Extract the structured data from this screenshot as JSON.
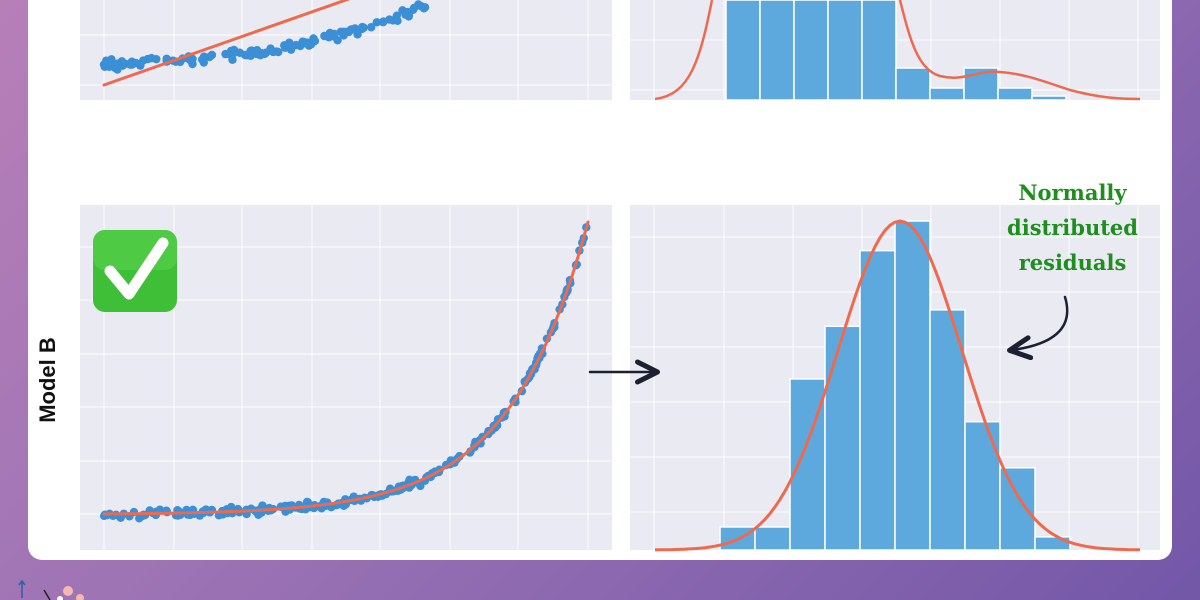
{
  "panel_label": "Model B",
  "annotation": {
    "lines": [
      "Normally",
      "distributed",
      "residuals"
    ],
    "color": "#1e8f1e"
  },
  "icons": {
    "badge": "check-mark-button-icon",
    "transition": "right-arrow-icon",
    "pointer": "curved-arrow-icon"
  },
  "colors": {
    "points": "#3a8fd6",
    "fit_line": "#ee6a4f",
    "bars": "#5da9de",
    "plot_background": "#e9eaf2"
  },
  "chart_data": [
    {
      "type": "scatter",
      "panel": "Model A fit (partially visible)",
      "title": "",
      "xlabel": "",
      "ylabel": "",
      "xlim": [
        0,
        1
      ],
      "ylim": [
        -0.25,
        1
      ],
      "grid": true,
      "scatter_trend": {
        "start_y": 0.05,
        "end_y": 0.95,
        "note": "curved upward trend"
      },
      "series": [
        {
          "kind": "points",
          "x_range": [
            0,
            0.52
          ],
          "y_at_start": 0.05,
          "y_at_end": 1.0,
          "count": 150
        },
        {
          "kind": "linear-fit",
          "x": [
            0,
            0.52
          ],
          "y": [
            -0.2,
            1.05
          ]
        }
      ]
    },
    {
      "type": "bar",
      "panel": "Model A residuals (partially visible)",
      "title": "",
      "xlabel": "",
      "ylabel": "",
      "grid": true,
      "bin_edges": [
        -3.0,
        -2.5,
        -2.0,
        -1.5,
        -1.0,
        -0.5,
        0.0,
        0.5,
        1.0,
        1.5
      ],
      "values": [
        10,
        10,
        10,
        10,
        1.7,
        0.6,
        1.8,
        0.6,
        0.2
      ],
      "density_curve": [
        [
          -4.0,
          0.0
        ],
        [
          -3.5,
          0.4
        ],
        [
          -3.1,
          10
        ],
        [
          -1.0,
          10
        ],
        [
          -0.6,
          2.0
        ],
        [
          0.0,
          1.3
        ],
        [
          0.6,
          1.6
        ],
        [
          1.2,
          0.6
        ],
        [
          2.0,
          0.05
        ]
      ]
    },
    {
      "type": "scatter",
      "panel": "Model B fit",
      "title": "",
      "xlabel": "",
      "ylabel": "",
      "xlim": [
        0,
        1
      ],
      "ylim": [
        0,
        1
      ],
      "grid": true,
      "series": [
        {
          "kind": "points",
          "x_range": [
            0,
            1
          ],
          "model": "exponential",
          "count": 250
        },
        {
          "kind": "exponential-fit",
          "x": [
            0,
            0.2,
            0.4,
            0.5,
            0.6,
            0.7,
            0.8,
            0.9,
            1.0
          ],
          "y": [
            0.0,
            0.005,
            0.02,
            0.04,
            0.07,
            0.13,
            0.26,
            0.5,
            0.94
          ]
        }
      ]
    },
    {
      "type": "bar",
      "panel": "Model B residuals",
      "title": "",
      "xlabel": "",
      "ylabel": "",
      "grid": true,
      "bin_edges": [
        -3.0,
        -2.5,
        -2.0,
        -1.5,
        -1.0,
        -0.5,
        0.0,
        0.5,
        1.0,
        1.5,
        2.0
      ],
      "values": [
        0.07,
        0.07,
        0.52,
        0.68,
        0.91,
        1.0,
        0.73,
        0.39,
        0.25,
        0.04
      ],
      "density_curve_peak": 1.0
    }
  ]
}
